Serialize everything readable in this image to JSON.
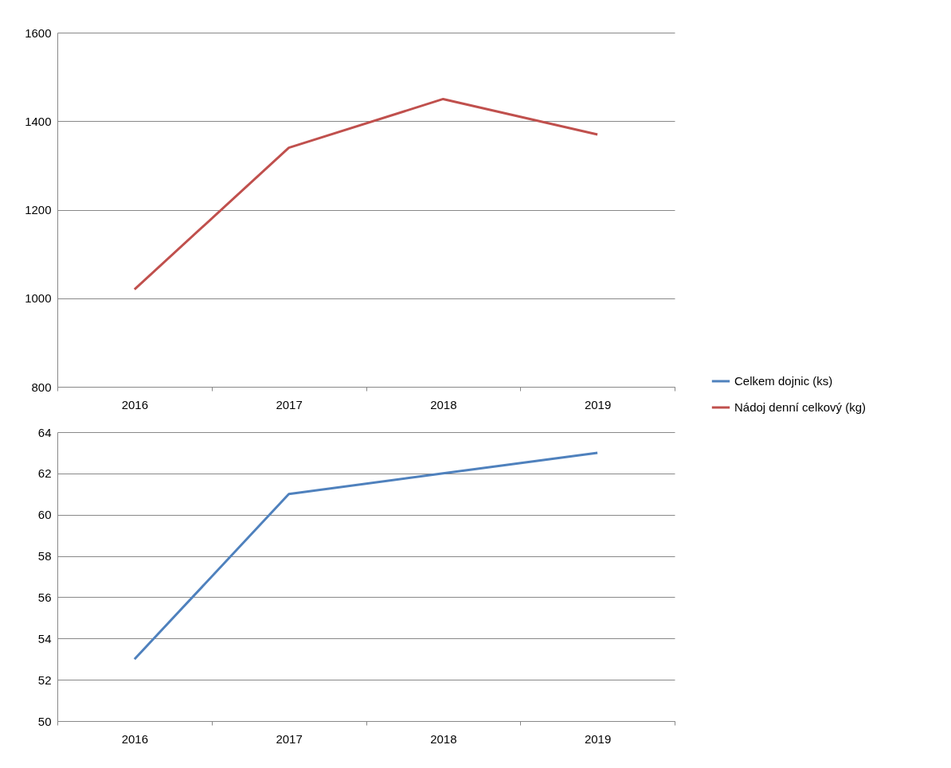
{
  "chart_data": [
    {
      "type": "line",
      "categories": [
        "2016",
        "2017",
        "2018",
        "2019"
      ],
      "series": [
        {
          "name": "Nádoj denní celkový (kg)",
          "color": "#c0504d",
          "values": [
            1020,
            1340,
            1450,
            1370
          ]
        }
      ],
      "ylim": [
        800,
        1600
      ],
      "yticks": [
        800,
        1000,
        1200,
        1400,
        1600
      ],
      "grid": "y",
      "legend": "right",
      "marker": "none",
      "line_style": "solid"
    },
    {
      "type": "line",
      "categories": [
        "2016",
        "2017",
        "2018",
        "2019"
      ],
      "series": [
        {
          "name": "Celkem dojnic (ks)",
          "color": "#4f81bd",
          "values": [
            53,
            61,
            62,
            63
          ]
        }
      ],
      "ylim": [
        50,
        64
      ],
      "yticks": [
        50,
        52,
        54,
        56,
        58,
        60,
        62,
        64
      ],
      "grid": "y",
      "legend": "right",
      "marker": "none",
      "line_style": "solid"
    }
  ]
}
